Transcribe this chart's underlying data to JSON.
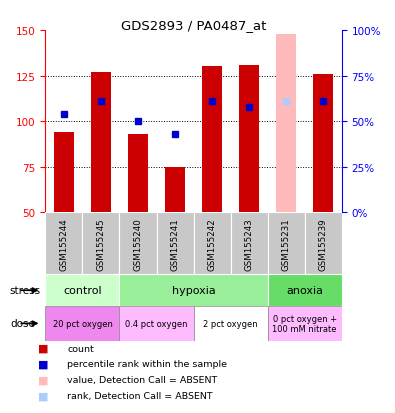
{
  "title": "GDS2893 / PA0487_at",
  "samples": [
    "GSM155244",
    "GSM155245",
    "GSM155240",
    "GSM155241",
    "GSM155242",
    "GSM155243",
    "GSM155231",
    "GSM155239"
  ],
  "bar_values": [
    94,
    127,
    93,
    75,
    130,
    131,
    148,
    126
  ],
  "bar_colors": [
    "#cc0000",
    "#cc0000",
    "#cc0000",
    "#cc0000",
    "#cc0000",
    "#cc0000",
    "#ffbbbb",
    "#cc0000"
  ],
  "rank_values": [
    104,
    111,
    100,
    93,
    111,
    108,
    111,
    111
  ],
  "rank_colors": [
    "#0000cc",
    "#0000cc",
    "#0000cc",
    "#0000cc",
    "#0000cc",
    "#0000cc",
    "#aaccff",
    "#0000cc"
  ],
  "ymin": 50,
  "ymax": 150,
  "yticks_left": [
    50,
    75,
    100,
    125,
    150
  ],
  "right_yticks": [
    50,
    75,
    100,
    125,
    150
  ],
  "right_ylabels": [
    "0%",
    "25%",
    "50%",
    "75%",
    "100%"
  ],
  "stress_groups": [
    {
      "label": "control",
      "start": 0,
      "end": 2,
      "color": "#ccffcc"
    },
    {
      "label": "hypoxia",
      "start": 2,
      "end": 6,
      "color": "#99ee99"
    },
    {
      "label": "anoxia",
      "start": 6,
      "end": 8,
      "color": "#66dd66"
    }
  ],
  "dose_groups": [
    {
      "label": "20 pct oxygen",
      "start": 0,
      "end": 2,
      "color": "#ee88ee"
    },
    {
      "label": "0.4 pct oxygen",
      "start": 2,
      "end": 4,
      "color": "#ffbbff"
    },
    {
      "label": "2 pct oxygen",
      "start": 4,
      "end": 6,
      "color": "#ffffff"
    },
    {
      "label": "0 pct oxygen +\n100 mM nitrate",
      "start": 6,
      "end": 8,
      "color": "#ffbbff"
    }
  ],
  "legend_items": [
    {
      "color": "#cc0000",
      "label": "count"
    },
    {
      "color": "#0000cc",
      "label": "percentile rank within the sample"
    },
    {
      "color": "#ffbbbb",
      "label": "value, Detection Call = ABSENT"
    },
    {
      "color": "#aaccff",
      "label": "rank, Detection Call = ABSENT"
    }
  ],
  "bar_width": 0.55,
  "stress_label": "stress",
  "dose_label": "dose",
  "grid_lines": [
    75,
    100,
    125
  ]
}
